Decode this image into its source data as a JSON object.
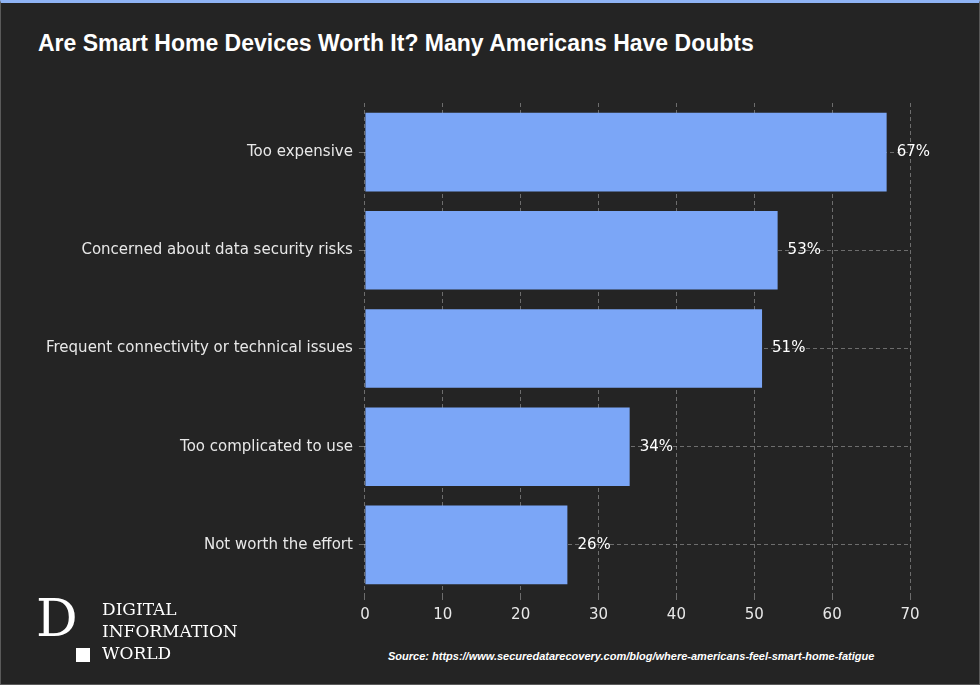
{
  "chart_data": {
    "type": "bar",
    "title": "Are Smart Home Devices Worth It? Many Americans Have Doubts",
    "orientation": "horizontal",
    "categories": [
      "Too expensive",
      "Concerned about data security risks",
      "Frequent connectivity or technical issues",
      "Too complicated to use",
      "Not worth the effort"
    ],
    "values": [
      67,
      53,
      51,
      34,
      26
    ],
    "value_labels": [
      "67%",
      "53%",
      "51%",
      "34%",
      "26%"
    ],
    "data_labels": true,
    "color": "#7ba6f7",
    "xlim": [
      0,
      70
    ],
    "xticks": [
      0,
      10,
      20,
      30,
      40,
      50,
      60,
      70
    ],
    "grid": true
  },
  "logo": {
    "mark": "D",
    "lines": [
      "DIGITAL",
      "INFORMATION",
      "WORLD"
    ]
  },
  "source": "Source: https://www.securedatarecovery.com/blog/where-americans-feel-smart-home-fatigue"
}
